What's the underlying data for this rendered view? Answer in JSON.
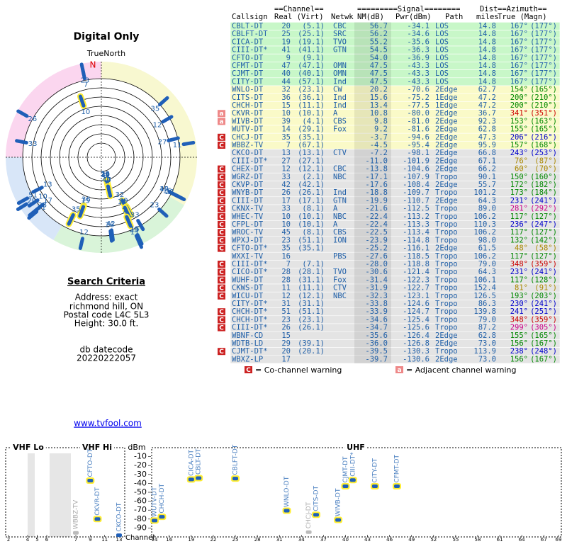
{
  "title": "Digital Only",
  "polar": {
    "label": "TrueNorth",
    "north": "N"
  },
  "search": {
    "heading": "Search Criteria",
    "lines": [
      "Address: exact",
      "richmond hill, ON",
      "Postal code L4C 5L3",
      "Height: 30.0 ft."
    ]
  },
  "db": {
    "label": "db datecode",
    "value": "20220222057"
  },
  "link": "www.tvfool.com",
  "legend": {
    "co_symbol": "C",
    "co_text": "= Co-channel warning",
    "adj_symbol": "a",
    "adj_text": "= Adjacent channel warning"
  },
  "table": {
    "header_top": [
      "==Channel==",
      "=========Signal========",
      "Dist",
      "==Azimuth=="
    ],
    "header_bottom": [
      "Callsign",
      "Real (Virt)",
      "Netwk",
      "NM(dB)",
      "Pwr(dBm)",
      "Path",
      "miles",
      "True (Magn)"
    ],
    "rows": [
      {
        "call": "CBLT-DT",
        "real": 20,
        "virt": "(5.1)",
        "net": "CBC",
        "nm": "56.7",
        "pwr": "-34.1",
        "path": "LOS",
        "dist": "14.8",
        "az_true": "167°",
        "az_magn": "(177°)",
        "az_color": "#1f5fa8",
        "bg": "#c8f7c8",
        "halo": true
      },
      {
        "call": "CBLFT-DT",
        "real": 25,
        "virt": "(25.1)",
        "net": "SRC",
        "nm": "56.2",
        "pwr": "-34.6",
        "path": "LOS",
        "dist": "14.8",
        "az_true": "167°",
        "az_magn": "(177°)",
        "az_color": "#1f5fa8",
        "bg": "#c8f7c8",
        "halo": true
      },
      {
        "call": "CICA-DT",
        "real": 19,
        "virt": "(19.1)",
        "net": "TVO",
        "nm": "55.2",
        "pwr": "-35.6",
        "path": "LOS",
        "dist": "14.8",
        "az_true": "167°",
        "az_magn": "(177°)",
        "az_color": "#1f5fa8",
        "bg": "#c8f7c8",
        "halo": true
      },
      {
        "call": "CIII-DT*",
        "real": 41,
        "virt": "(41.1)",
        "net": "GTN",
        "nm": "54.5",
        "pwr": "-36.3",
        "path": "LOS",
        "dist": "14.8",
        "az_true": "167°",
        "az_magn": "(177°)",
        "az_color": "#1f5fa8",
        "bg": "#c8f7c8",
        "halo": true
      },
      {
        "call": "CFTO-DT",
        "real": 9,
        "virt": "(9.1)",
        "nm": "54.0",
        "pwr": "-36.9",
        "path": "LOS",
        "dist": "14.8",
        "az_true": "167°",
        "az_magn": "(177°)",
        "az_color": "#1f5fa8",
        "bg": "#c8f7c8",
        "halo": true
      },
      {
        "call": "CFMT-DT",
        "real": 47,
        "virt": "(47.1)",
        "net": "OMN",
        "nm": "47.5",
        "pwr": "-43.3",
        "path": "LOS",
        "dist": "14.8",
        "az_true": "167°",
        "az_magn": "(177°)",
        "az_color": "#1f5fa8",
        "bg": "#c8f7c8",
        "halo": true
      },
      {
        "call": "CJMT-DT",
        "real": 40,
        "virt": "(40.1)",
        "net": "OMN",
        "nm": "47.5",
        "pwr": "-43.3",
        "path": "LOS",
        "dist": "14.8",
        "az_true": "167°",
        "az_magn": "(177°)",
        "az_color": "#1f5fa8",
        "bg": "#c8f7c8",
        "halo": true
      },
      {
        "call": "CITY-DT",
        "real": 44,
        "virt": "(57.1)",
        "net": "Ind",
        "nm": "47.5",
        "pwr": "-43.3",
        "path": "LOS",
        "dist": "14.8",
        "az_true": "167°",
        "az_magn": "(177°)",
        "az_color": "#1f5fa8",
        "bg": "#c8f7c8",
        "halo": true
      },
      {
        "call": "WNLO-DT",
        "real": 32,
        "virt": "(23.1)",
        "net": "CW",
        "nm": "20.2",
        "pwr": "-70.6",
        "path": "2Edge",
        "dist": "62.7",
        "az_true": "154°",
        "az_magn": "(165°)",
        "az_color": "#008800",
        "bg": "#fafac8",
        "halo": true
      },
      {
        "call": "CITS-DT",
        "real": 36,
        "virt": "(36.1)",
        "net": "Ind",
        "nm": "15.6",
        "pwr": "-75.2",
        "path": "1Edge",
        "dist": "47.2",
        "az_true": "200°",
        "az_magn": "(210°)",
        "az_color": "#008800",
        "bg": "#fafac8",
        "halo": true
      },
      {
        "call": "CHCH-DT",
        "real": 15,
        "virt": "(11.1)",
        "net": "Ind",
        "nm": "13.4",
        "pwr": "-77.5",
        "path": "1Edge",
        "dist": "47.2",
        "az_true": "200°",
        "az_magn": "(210°)",
        "az_color": "#008800",
        "bg": "#fafac8",
        "halo": true
      },
      {
        "call": "CKVR-DT",
        "real": 10,
        "virt": "(10.1)",
        "net": "A",
        "nm": "10.8",
        "pwr": "-80.0",
        "path": "2Edge",
        "dist": "36.7",
        "az_true": "341°",
        "az_magn": "(351°)",
        "az_color": "#cc0000",
        "bg": "#fafac8",
        "halo": true,
        "warn": "a"
      },
      {
        "call": "WIVB-DT",
        "real": 39,
        "virt": "(4.1)",
        "net": "CBS",
        "nm": "9.8",
        "pwr": "-81.0",
        "path": "2Edge",
        "dist": "92.3",
        "az_true": "153°",
        "az_magn": "(163°)",
        "az_color": "#008800",
        "bg": "#fafac8",
        "halo": true,
        "warn": "a"
      },
      {
        "call": "WUTV-DT",
        "real": 14,
        "virt": "(29.1)",
        "net": "Fox",
        "nm": "9.2",
        "pwr": "-81.6",
        "path": "2Edge",
        "dist": "62.8",
        "az_true": "155°",
        "az_magn": "(165°)",
        "az_color": "#008800",
        "bg": "#fafac8",
        "halo": true
      },
      {
        "call": "CHCJ-DT",
        "real": 35,
        "virt": "(35.1)",
        "nm": "-3.7",
        "pwr": "-94.6",
        "path": "2Edge",
        "dist": "47.3",
        "az_true": "206°",
        "az_magn": "(216°)",
        "az_color": "#0000cc",
        "bg": "#fafac8",
        "halo": true,
        "warn": "C"
      },
      {
        "call": "WBBZ-TV",
        "real": 7,
        "virt": "(67.1)",
        "nm": "-4.5",
        "pwr": "-95.4",
        "path": "2Edge",
        "dist": "95.9",
        "az_true": "157°",
        "az_magn": "(168°)",
        "az_color": "#008800",
        "bg": "#fafac8",
        "halo": true,
        "warn": "C"
      },
      {
        "call": "CKCO-DT",
        "real": 13,
        "virt": "(13.1)",
        "net": "CTV",
        "nm": "-7.2",
        "pwr": "-98.1",
        "path": "2Edge",
        "dist": "66.8",
        "az_true": "243°",
        "az_magn": "(253°)",
        "az_color": "#0000cc",
        "bg": "#e4e4e4"
      },
      {
        "call": "CIII-DT*",
        "real": 27,
        "virt": "(27.1)",
        "nm": "-11.0",
        "pwr": "-101.9",
        "path": "2Edge",
        "dist": "67.1",
        "az_true": "76°",
        "az_magn": "(87°)",
        "az_color": "#aa8800",
        "bg": "#e4e4e4"
      },
      {
        "call": "CHEX-DT",
        "real": 12,
        "virt": "(12.1)",
        "net": "CBC",
        "nm": "-13.8",
        "pwr": "-104.6",
        "path": "2Edge",
        "dist": "66.2",
        "az_true": "60°",
        "az_magn": "(70°)",
        "az_color": "#aa8800",
        "bg": "#e4e4e4",
        "warn": "C"
      },
      {
        "call": "WGRZ-DT",
        "real": 33,
        "virt": "(2.1)",
        "net": "NBC",
        "nm": "-17.1",
        "pwr": "-107.9",
        "path": "Tropo",
        "dist": "90.1",
        "az_true": "150°",
        "az_magn": "(160°)",
        "az_color": "#008800",
        "bg": "#e4e4e4",
        "warn": "C"
      },
      {
        "call": "CKVP-DT",
        "real": 42,
        "virt": "(42.1)",
        "nm": "-17.6",
        "pwr": "-108.4",
        "path": "2Edge",
        "dist": "55.7",
        "az_true": "172°",
        "az_magn": "(182°)",
        "az_color": "#008800",
        "bg": "#e4e4e4",
        "warn": "C"
      },
      {
        "call": "WNYB-DT",
        "real": 26,
        "virt": "(26.1)",
        "net": "Ind",
        "nm": "-18.8",
        "pwr": "-109.7",
        "path": "Tropo",
        "dist": "101.2",
        "az_true": "173°",
        "az_magn": "(184°)",
        "az_color": "#008800",
        "bg": "#e4e4e4",
        "warn": "C"
      },
      {
        "call": "CIII-DT",
        "real": 17,
        "virt": "(17.1)",
        "net": "GTN",
        "nm": "-19.9",
        "pwr": "-110.7",
        "path": "2Edge",
        "dist": "64.3",
        "az_true": "231°",
        "az_magn": "(241°)",
        "az_color": "#0000cc",
        "bg": "#e4e4e4",
        "warn": "C"
      },
      {
        "call": "CKNX-TV",
        "real": 33,
        "virt": "(8.1)",
        "net": "A",
        "nm": "-21.6",
        "pwr": "-112.5",
        "path": "Tropo",
        "dist": "89.0",
        "az_true": "281°",
        "az_magn": "(292°)",
        "az_color": "#cc0088",
        "bg": "#e4e4e4",
        "warn": "C"
      },
      {
        "call": "WHEC-TV",
        "real": 10,
        "virt": "(10.1)",
        "net": "NBC",
        "nm": "-22.4",
        "pwr": "-113.2",
        "path": "Tropo",
        "dist": "106.2",
        "az_true": "117°",
        "az_magn": "(127°)",
        "az_color": "#008800",
        "bg": "#e4e4e4",
        "warn": "C"
      },
      {
        "call": "CFPL-DT",
        "real": 10,
        "virt": "(10.1)",
        "net": "A",
        "nm": "-22.4",
        "pwr": "-113.3",
        "path": "Tropo",
        "dist": "110.3",
        "az_true": "236°",
        "az_magn": "(247°)",
        "az_color": "#0000cc",
        "bg": "#e4e4e4",
        "warn": "C"
      },
      {
        "call": "WROC-TV",
        "real": 45,
        "virt": "(8.1)",
        "net": "CBS",
        "nm": "-22.5",
        "pwr": "-113.4",
        "path": "Tropo",
        "dist": "106.2",
        "az_true": "117°",
        "az_magn": "(127°)",
        "az_color": "#008800",
        "bg": "#e4e4e4",
        "warn": "C"
      },
      {
        "call": "WPXJ-DT",
        "real": 23,
        "virt": "(51.1)",
        "net": "ION",
        "nm": "-23.9",
        "pwr": "-114.8",
        "path": "Tropo",
        "dist": "98.0",
        "az_true": "132°",
        "az_magn": "(142°)",
        "az_color": "#008800",
        "bg": "#e4e4e4",
        "warn": "C"
      },
      {
        "call": "CFTO-DT*",
        "real": 35,
        "virt": "(35.1)",
        "nm": "-25.2",
        "pwr": "-116.1",
        "path": "2Edge",
        "dist": "61.5",
        "az_true": "48°",
        "az_magn": "(58°)",
        "az_color": "#aa8800",
        "bg": "#e4e4e4",
        "warn": "C"
      },
      {
        "call": "WXXI-TV",
        "real": 16,
        "net": "PBS",
        "nm": "-27.6",
        "pwr": "-118.5",
        "path": "Tropo",
        "dist": "106.2",
        "az_true": "117°",
        "az_magn": "(127°)",
        "az_color": "#008800",
        "bg": "#e4e4e4"
      },
      {
        "call": "CIII-DT*",
        "real": 7,
        "virt": "(7.1)",
        "nm": "-28.0",
        "pwr": "-118.8",
        "path": "Tropo",
        "dist": "79.0",
        "az_true": "348°",
        "az_magn": "(359°)",
        "az_color": "#cc0000",
        "bg": "#e4e4e4",
        "warn": "C"
      },
      {
        "call": "CICO-DT*",
        "real": 28,
        "virt": "(28.1)",
        "net": "TVO",
        "nm": "-30.6",
        "pwr": "-121.4",
        "path": "Tropo",
        "dist": "64.3",
        "az_true": "231°",
        "az_magn": "(241°)",
        "az_color": "#0000cc",
        "bg": "#e4e4e4",
        "warn": "C"
      },
      {
        "call": "WUHF-DT",
        "real": 28,
        "virt": "(31.1)",
        "net": "Fox",
        "nm": "-31.4",
        "pwr": "-122.3",
        "path": "Tropo",
        "dist": "106.1",
        "az_true": "117°",
        "az_magn": "(128°)",
        "az_color": "#008800",
        "bg": "#e4e4e4",
        "warn": "C"
      },
      {
        "call": "CKWS-DT",
        "real": 11,
        "virt": "(11.1)",
        "net": "CTV",
        "nm": "-31.9",
        "pwr": "-122.7",
        "path": "Tropo",
        "dist": "152.4",
        "az_true": "81°",
        "az_magn": "(91°)",
        "az_color": "#aa8800",
        "bg": "#e4e4e4",
        "warn": "C"
      },
      {
        "call": "WICU-DT",
        "real": 12,
        "virt": "(12.1)",
        "net": "NBC",
        "nm": "-32.3",
        "pwr": "-123.1",
        "path": "Tropo",
        "dist": "126.5",
        "az_true": "193°",
        "az_magn": "(203°)",
        "az_color": "#008800",
        "bg": "#e4e4e4",
        "warn": "C"
      },
      {
        "call": "CITY-DT*",
        "real": 31,
        "virt": "(31.1)",
        "nm": "-33.8",
        "pwr": "-124.6",
        "path": "Tropo",
        "dist": "86.3",
        "az_true": "230°",
        "az_magn": "(241°)",
        "az_color": "#0000cc",
        "bg": "#e4e4e4"
      },
      {
        "call": "CHCH-DT*",
        "real": 51,
        "virt": "(51.1)",
        "nm": "-33.9",
        "pwr": "-124.7",
        "path": "Tropo",
        "dist": "139.8",
        "az_true": "241°",
        "az_magn": "(251°)",
        "az_color": "#0000cc",
        "bg": "#e4e4e4",
        "warn": "C"
      },
      {
        "call": "CHCH-DT*",
        "real": 23,
        "virt": "(23.1)",
        "nm": "-34.6",
        "pwr": "-125.4",
        "path": "Tropo",
        "dist": "79.0",
        "az_true": "348°",
        "az_magn": "(359°)",
        "az_color": "#cc0000",
        "bg": "#e4e4e4",
        "warn": "C"
      },
      {
        "call": "CIII-DT*",
        "real": 26,
        "virt": "(26.1)",
        "nm": "-34.7",
        "pwr": "-125.6",
        "path": "Tropo",
        "dist": "87.2",
        "az_true": "299°",
        "az_magn": "(305°)",
        "az_color": "#cc0088",
        "bg": "#e4e4e4",
        "warn": "C"
      },
      {
        "call": "WBNF-CD",
        "real": 15,
        "nm": "-35.6",
        "pwr": "-126.4",
        "path": "2Edge",
        "dist": "62.8",
        "az_true": "155°",
        "az_magn": "(165°)",
        "az_color": "#008800",
        "bg": "#e4e4e4"
      },
      {
        "call": "WDTB-LD",
        "real": 29,
        "virt": "(39.1)",
        "nm": "-36.0",
        "pwr": "-126.8",
        "path": "2Edge",
        "dist": "73.0",
        "az_true": "156°",
        "az_magn": "(167°)",
        "az_color": "#008800",
        "bg": "#e4e4e4"
      },
      {
        "call": "CJMT-DT*",
        "real": 20,
        "virt": "(20.1)",
        "nm": "-39.5",
        "pwr": "-130.3",
        "path": "Tropo",
        "dist": "113.9",
        "az_true": "238°",
        "az_magn": "(248°)",
        "az_color": "#0000cc",
        "bg": "#e4e4e4",
        "warn": "C"
      },
      {
        "call": "WBXZ-LP",
        "real": 17,
        "nm": "-39.7",
        "pwr": "-130.6",
        "path": "2Edge",
        "dist": "73.0",
        "az_true": "156°",
        "az_magn": "(167°)",
        "az_color": "#008800",
        "bg": "#e4e4e4"
      }
    ]
  },
  "spectrum": {
    "y_label": "dBm",
    "x_label": "Channel",
    "ylim": [
      -100,
      0
    ],
    "yticks": [
      -10,
      -20,
      -30,
      -40,
      -50,
      -60,
      -70,
      -80,
      -90
    ],
    "sections": [
      {
        "name": "VHF Lo",
        "xlim": [
          2,
          6
        ],
        "xticks": [
          2,
          4,
          5,
          6
        ]
      },
      {
        "name": "VHF Hi",
        "xlim": [
          7,
          13
        ],
        "xticks": [
          7,
          9,
          11,
          13
        ]
      },
      {
        "name": "UHF",
        "xlim": [
          14,
          69
        ],
        "xticks": [
          14,
          16,
          19,
          22,
          25,
          28,
          31,
          34,
          37,
          40,
          43,
          46,
          49,
          52,
          55,
          58,
          61,
          64,
          67,
          69
        ]
      }
    ]
  }
}
